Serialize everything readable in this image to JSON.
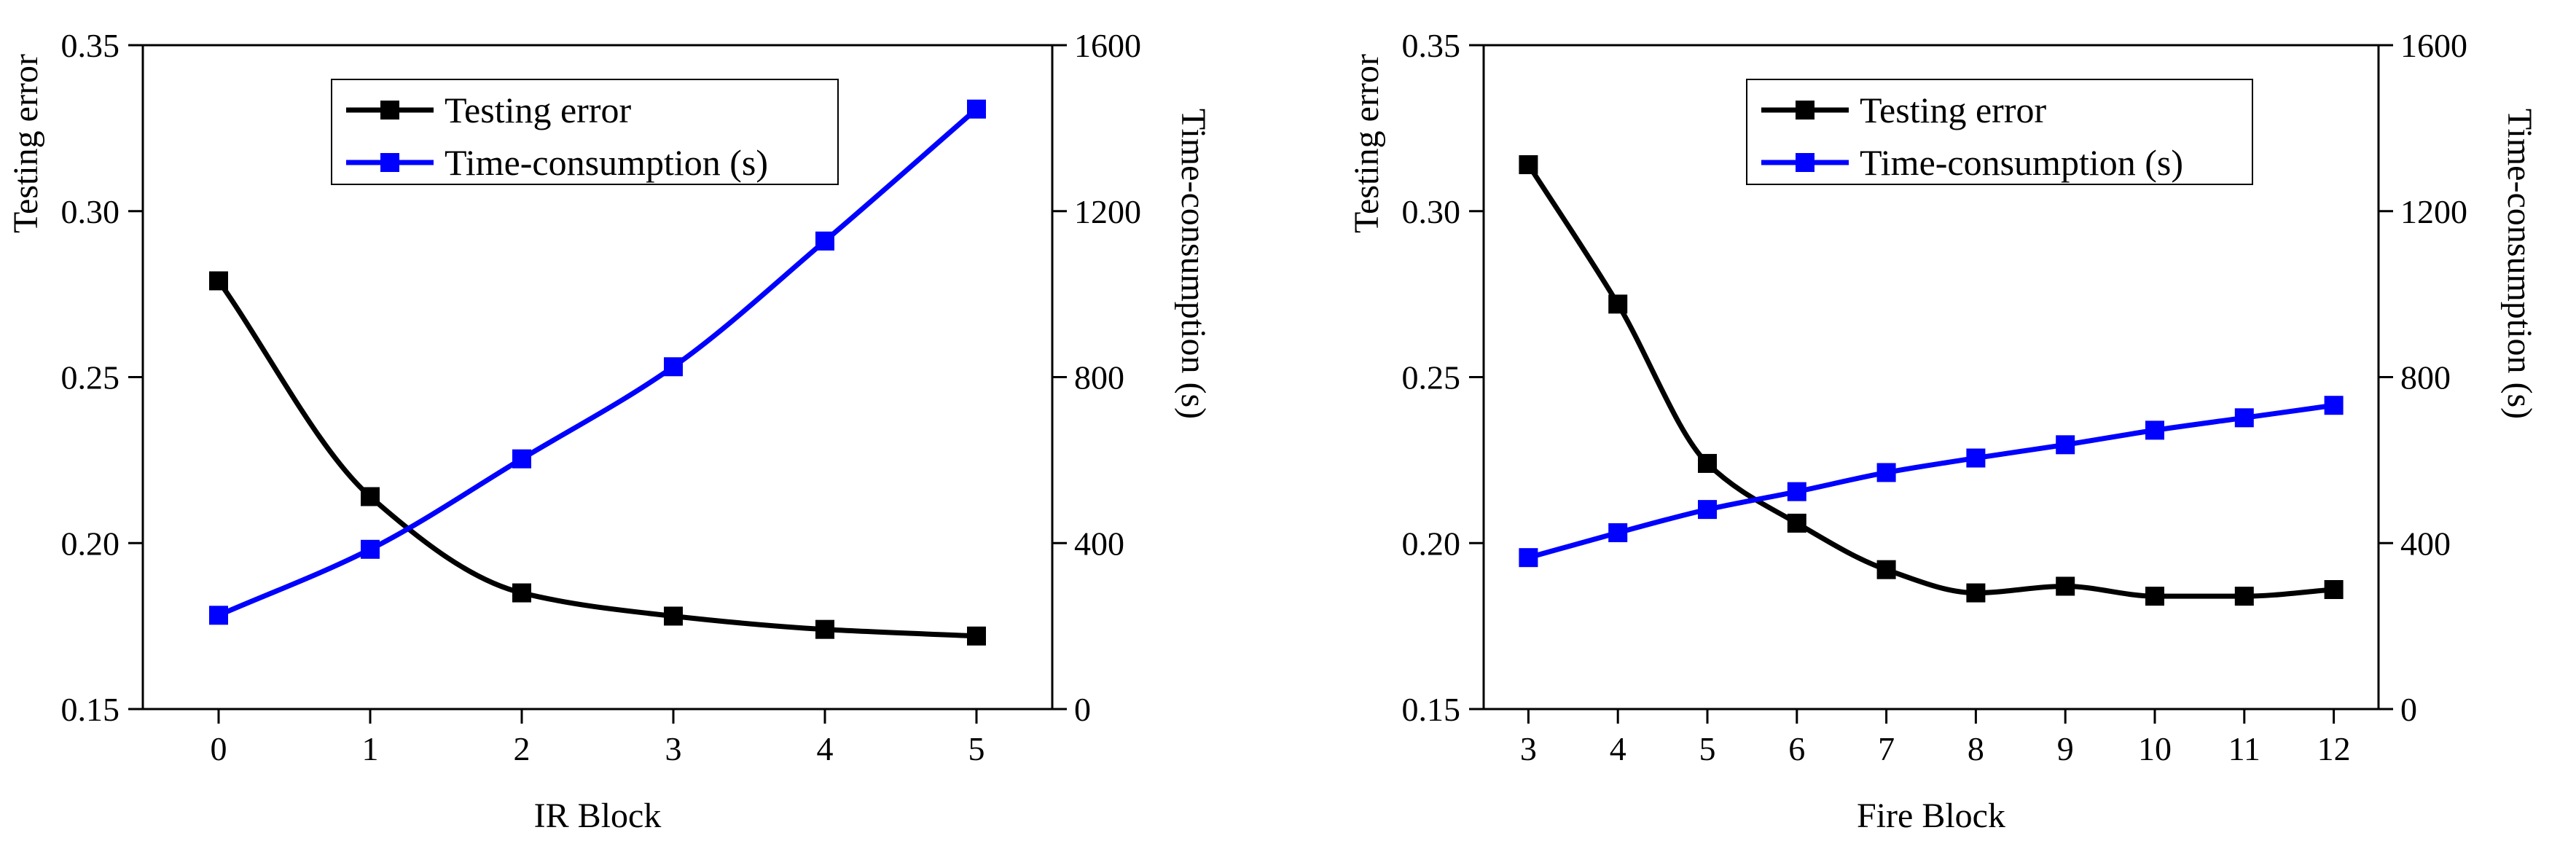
{
  "chart_data": [
    {
      "type": "line",
      "xlabel": "IR Block",
      "ylabel_left": "Testing error",
      "ylabel_right": "Time-consumption (s)",
      "x": [
        0,
        1,
        2,
        3,
        4,
        5
      ],
      "xlim": [
        -0.5,
        5.5
      ],
      "xticks": [
        0,
        1,
        2,
        3,
        4,
        5
      ],
      "ylim_left": [
        0.15,
        0.35
      ],
      "yticks_left": [
        "0.15",
        "0.20",
        "0.25",
        "0.30",
        "0.35"
      ],
      "ylim_right": [
        0,
        1600
      ],
      "yticks_right": [
        "0",
        "400",
        "800",
        "1200",
        "1600"
      ],
      "legend_position": "top-center",
      "series": [
        {
          "name": "Testing error",
          "axis": "left",
          "color": "#000000",
          "values": [
            0.279,
            0.214,
            0.185,
            0.178,
            0.174,
            0.172
          ]
        },
        {
          "name": "Time-consumption (s)",
          "axis": "right",
          "color": "#0000ff",
          "values": [
            226,
            385,
            603,
            825,
            1128,
            1446
          ]
        }
      ]
    },
    {
      "type": "line",
      "xlabel": "Fire Block",
      "ylabel_left": "Testing error",
      "ylabel_right": "Time-consumption (s)",
      "x": [
        3,
        4,
        5,
        6,
        7,
        8,
        9,
        10,
        11,
        12
      ],
      "xlim": [
        2.5,
        12.5
      ],
      "xticks": [
        3,
        4,
        5,
        6,
        7,
        8,
        9,
        10,
        11,
        12
      ],
      "ylim_left": [
        0.15,
        0.35
      ],
      "yticks_left": [
        "0.15",
        "0.20",
        "0.25",
        "0.30",
        "0.35"
      ],
      "ylim_right": [
        0,
        1600
      ],
      "yticks_right": [
        "0",
        "400",
        "800",
        "1200",
        "1600"
      ],
      "legend_position": "top-center",
      "series": [
        {
          "name": "Testing error",
          "axis": "left",
          "color": "#000000",
          "values": [
            0.314,
            0.272,
            0.224,
            0.206,
            0.192,
            0.185,
            0.187,
            0.184,
            0.184,
            0.186
          ]
        },
        {
          "name": "Time-consumption (s)",
          "axis": "right",
          "color": "#0000ff",
          "values": [
            365,
            425,
            481,
            524,
            570,
            605,
            637,
            672,
            702,
            732
          ]
        }
      ]
    }
  ]
}
